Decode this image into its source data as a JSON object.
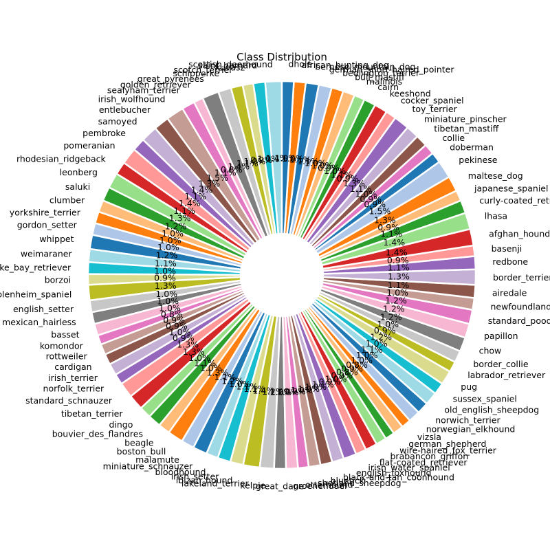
{
  "chart_data": {
    "type": "pie",
    "title": "Class Distribution",
    "subtype": "donut",
    "colormap": [
      "#1f77b4",
      "#aec7e8",
      "#ff7f0e",
      "#ffbb78",
      "#2ca02c",
      "#98df8a",
      "#d62728",
      "#ff9896",
      "#9467bd",
      "#c5b0d5",
      "#8c564b",
      "#c49c94",
      "#e377c2",
      "#f7b6d2",
      "#7f7f7f",
      "#c7c7c7",
      "#bcbd22",
      "#dbdb8d",
      "#17becf",
      "#9edae5"
    ],
    "slices": [
      {
        "label": "scottish_deerhound",
        "value": 1.4,
        "color": "#9edae5"
      },
      {
        "label": "saint_bernard",
        "value": 1.0,
        "color": "#17becf"
      },
      {
        "label": "kuvasz",
        "value": 0.9,
        "color": "#dbdb8d"
      },
      {
        "label": "scotch_terrier",
        "value": 1.0,
        "color": "#bcbd22"
      },
      {
        "label": "schipperke",
        "value": 1.1,
        "color": "#c7c7c7"
      },
      {
        "label": "great_pyrenees",
        "value": 1.4,
        "color": "#7f7f7f"
      },
      {
        "label": "golden_retriever",
        "value": 0.8,
        "color": "#f7b6d2"
      },
      {
        "label": "sealyham_terrier",
        "value": 1.1,
        "color": "#e377c2"
      },
      {
        "label": "irish_wolfhound",
        "value": 1.5,
        "color": "#c49c94"
      },
      {
        "label": "entlebucher",
        "value": 1.3,
        "color": "#8c564b"
      },
      {
        "label": "samoyed",
        "value": 1.4,
        "color": "#c5b0d5"
      },
      {
        "label": "pembroke",
        "value": 1.1,
        "color": "#9467bd"
      },
      {
        "label": "pomeranian",
        "value": 1.4,
        "color": "#ff9896"
      },
      {
        "label": "rhodesian_ridgeback",
        "value": 1.1,
        "color": "#d62728"
      },
      {
        "label": "leonberg",
        "value": 1.3,
        "color": "#98df8a"
      },
      {
        "label": "saluki",
        "value": 1.2,
        "color": "#2ca02c"
      },
      {
        "label": "clumber",
        "value": 1.0,
        "color": "#ffbb78"
      },
      {
        "label": "yorkshire_terrier",
        "value": 1.0,
        "color": "#ff7f0e"
      },
      {
        "label": "gordon_setter",
        "value": 1.0,
        "color": "#aec7e8"
      },
      {
        "label": "whippet",
        "value": 1.2,
        "color": "#1f77b4"
      },
      {
        "label": "weimaraner",
        "value": 1.1,
        "color": "#9edae5"
      },
      {
        "label": "chesapeake_bay_retriever",
        "value": 1.0,
        "color": "#17becf"
      },
      {
        "label": "borzoi",
        "value": 0.9,
        "color": "#dbdb8d"
      },
      {
        "label": "blenheim_spaniel",
        "value": 1.3,
        "color": "#bcbd22"
      },
      {
        "label": "english_setter",
        "value": 1.0,
        "color": "#c7c7c7"
      },
      {
        "label": "mexican_hairless",
        "value": 1.0,
        "color": "#7f7f7f"
      },
      {
        "label": "basset",
        "value": 1.0,
        "color": "#f7b6d2"
      },
      {
        "label": "komondor",
        "value": 0.8,
        "color": "#e377c2"
      },
      {
        "label": "rottweiler",
        "value": 0.9,
        "color": "#c49c94"
      },
      {
        "label": "cardigan",
        "value": 0.9,
        "color": "#8c564b"
      },
      {
        "label": "irish_terrier",
        "value": 1.0,
        "color": "#c5b0d5"
      },
      {
        "label": "norfolk_terrier",
        "value": 0.9,
        "color": "#9467bd"
      },
      {
        "label": "standard_schnauzer",
        "value": 1.3,
        "color": "#ff9896"
      },
      {
        "label": "tibetan_terrier",
        "value": 1.3,
        "color": "#d62728"
      },
      {
        "label": "dingo",
        "value": 1.0,
        "color": "#98df8a"
      },
      {
        "label": "bouvier_des_flandres",
        "value": 1.1,
        "color": "#2ca02c"
      },
      {
        "label": "beagle",
        "value": 1.0,
        "color": "#ffbb78"
      },
      {
        "label": "boston_bull",
        "value": 1.3,
        "color": "#ff7f0e"
      },
      {
        "label": "malamute",
        "value": 1.1,
        "color": "#aec7e8"
      },
      {
        "label": "miniature_schnauzer",
        "value": 1.2,
        "color": "#1f77b4"
      },
      {
        "label": "bloodhound",
        "value": 1.0,
        "color": "#9edae5"
      },
      {
        "label": "irish_setter",
        "value": 1.1,
        "color": "#17becf"
      },
      {
        "label": "ibizan_hound",
        "value": 1.1,
        "color": "#dbdb8d"
      },
      {
        "label": "lakeland_terrier",
        "value": 1.4,
        "color": "#bcbd22"
      },
      {
        "label": "kelpie",
        "value": 1.2,
        "color": "#c7c7c7"
      },
      {
        "label": "great_dane",
        "value": 1.0,
        "color": "#7f7f7f"
      },
      {
        "label": "groenendael",
        "value": 1.0,
        "color": "#f7b6d2"
      },
      {
        "label": "otterhound",
        "value": 0.9,
        "color": "#e377c2"
      },
      {
        "label": "shetland_sheepdog",
        "value": 1.0,
        "color": "#c49c94"
      },
      {
        "label": "bluetick",
        "value": 1.0,
        "color": "#8c564b"
      },
      {
        "label": "black-and-tan_coonhound",
        "value": 1.0,
        "color": "#c5b0d5"
      },
      {
        "label": "english_foxhound",
        "value": 1.1,
        "color": "#9467bd"
      },
      {
        "label": "irish_water_spaniel",
        "value": 0.9,
        "color": "#ff9896"
      },
      {
        "label": "flat-coated_retriever",
        "value": 1.0,
        "color": "#d62728"
      },
      {
        "label": "brabancon_griffon",
        "value": 0.9,
        "color": "#98df8a"
      },
      {
        "label": "wire-haired_fox_terrier",
        "value": 0.8,
        "color": "#2ca02c"
      },
      {
        "label": "german_shepherd",
        "value": 0.9,
        "color": "#ffbb78"
      },
      {
        "label": "vizsla",
        "value": 0.8,
        "color": "#ff7f0e"
      },
      {
        "label": "norwegian_elkhound",
        "value": 1.0,
        "color": "#aec7e8"
      },
      {
        "label": "norwich_terrier",
        "value": 1.0,
        "color": "#1f77b4"
      },
      {
        "label": "old_english_sheepdog",
        "value": 1.1,
        "color": "#9edae5"
      },
      {
        "label": "sussex_spaniel",
        "value": 1.0,
        "color": "#17becf"
      },
      {
        "label": "pug",
        "value": 1.2,
        "color": "#dbdb8d"
      },
      {
        "label": "labrador_retriever",
        "value": 0.9,
        "color": "#bcbd22"
      },
      {
        "label": "border_collie",
        "value": 1.0,
        "color": "#c7c7c7"
      },
      {
        "label": "chow",
        "value": 1.2,
        "color": "#7f7f7f"
      },
      {
        "label": "papillon",
        "value": 1.2,
        "color": "#f7b6d2"
      },
      {
        "label": "standard_poodle",
        "value": 1.2,
        "color": "#e377c2"
      },
      {
        "label": "newfoundland",
        "value": 1.0,
        "color": "#c49c94"
      },
      {
        "label": "airedale",
        "value": 1.1,
        "color": "#8c564b"
      },
      {
        "label": "border_terrier",
        "value": 1.3,
        "color": "#c5b0d5"
      },
      {
        "label": "redbone",
        "value": 1.1,
        "color": "#9467bd"
      },
      {
        "label": "basenji",
        "value": 0.9,
        "color": "#ff9896"
      },
      {
        "label": "afghan_hound",
        "value": 1.4,
        "color": "#d62728"
      },
      {
        "label": "lhasa",
        "value": 1.4,
        "color": "#98df8a"
      },
      {
        "label": "curly-coated_retriever",
        "value": 1.1,
        "color": "#2ca02c"
      },
      {
        "label": "japanese_spaniel",
        "value": 0.9,
        "color": "#ffbb78"
      },
      {
        "label": "maltese_dog",
        "value": 1.3,
        "color": "#ff7f0e"
      },
      {
        "label": "pekinese",
        "value": 1.5,
        "color": "#aec7e8"
      },
      {
        "label": "doberman",
        "value": 0.9,
        "color": "#1f77b4"
      },
      {
        "label": "collie",
        "value": 0.9,
        "color": "#e377c2"
      },
      {
        "label": "tibetan_mastiff",
        "value": 1.0,
        "color": "#8c564b"
      },
      {
        "label": "miniature_pinscher",
        "value": 1.1,
        "color": "#c5b0d5"
      },
      {
        "label": "toy_terrier",
        "value": 1.3,
        "color": "#9467bd"
      },
      {
        "label": "cocker_spaniel",
        "value": 0.9,
        "color": "#ff9896"
      },
      {
        "label": "keeshond",
        "value": 1.1,
        "color": "#d62728"
      },
      {
        "label": "cairn",
        "value": 1.0,
        "color": "#2ca02c"
      },
      {
        "label": "malinois",
        "value": 0.9,
        "color": "#98df8a"
      },
      {
        "label": "bull_mastiff",
        "value": 1.0,
        "color": "#ffbb78"
      },
      {
        "label": "bedlington_terrier",
        "value": 1.0,
        "color": "#ff7f0e"
      },
      {
        "label": "german_short-haired_pointer",
        "value": 1.1,
        "color": "#aec7e8"
      },
      {
        "label": "bernese_mountain_dog",
        "value": 1.1,
        "color": "#1f77b4"
      },
      {
        "label": "african_hunting_dog",
        "value": 1.0,
        "color": "#ff7f0e"
      },
      {
        "label": "dhole",
        "value": 1.0,
        "color": "#1f77b4"
      }
    ]
  }
}
